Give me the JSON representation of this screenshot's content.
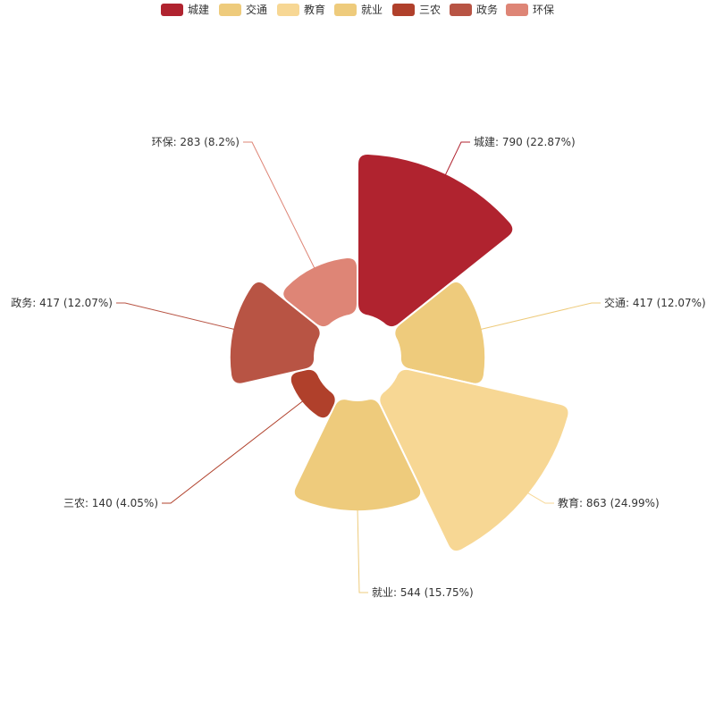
{
  "chart_data": {
    "type": "pie",
    "variant": "rose",
    "legend_position": "top-center",
    "categories": [
      "城建",
      "交通",
      "教育",
      "就业",
      "三农",
      "政务",
      "环保"
    ],
    "values": [
      790,
      417,
      863,
      544,
      140,
      417,
      283
    ],
    "percentages": [
      "22.87",
      "12.07",
      "24.99",
      "15.75",
      "4.05",
      "12.07",
      "8.2"
    ],
    "colors": [
      "#b0232f",
      "#eecb7c",
      "#f7d794",
      "#eecb7c",
      "#b0402b",
      "#b85444",
      "#de8576"
    ],
    "label_format": "{name}: {value} ({percent}%)"
  }
}
